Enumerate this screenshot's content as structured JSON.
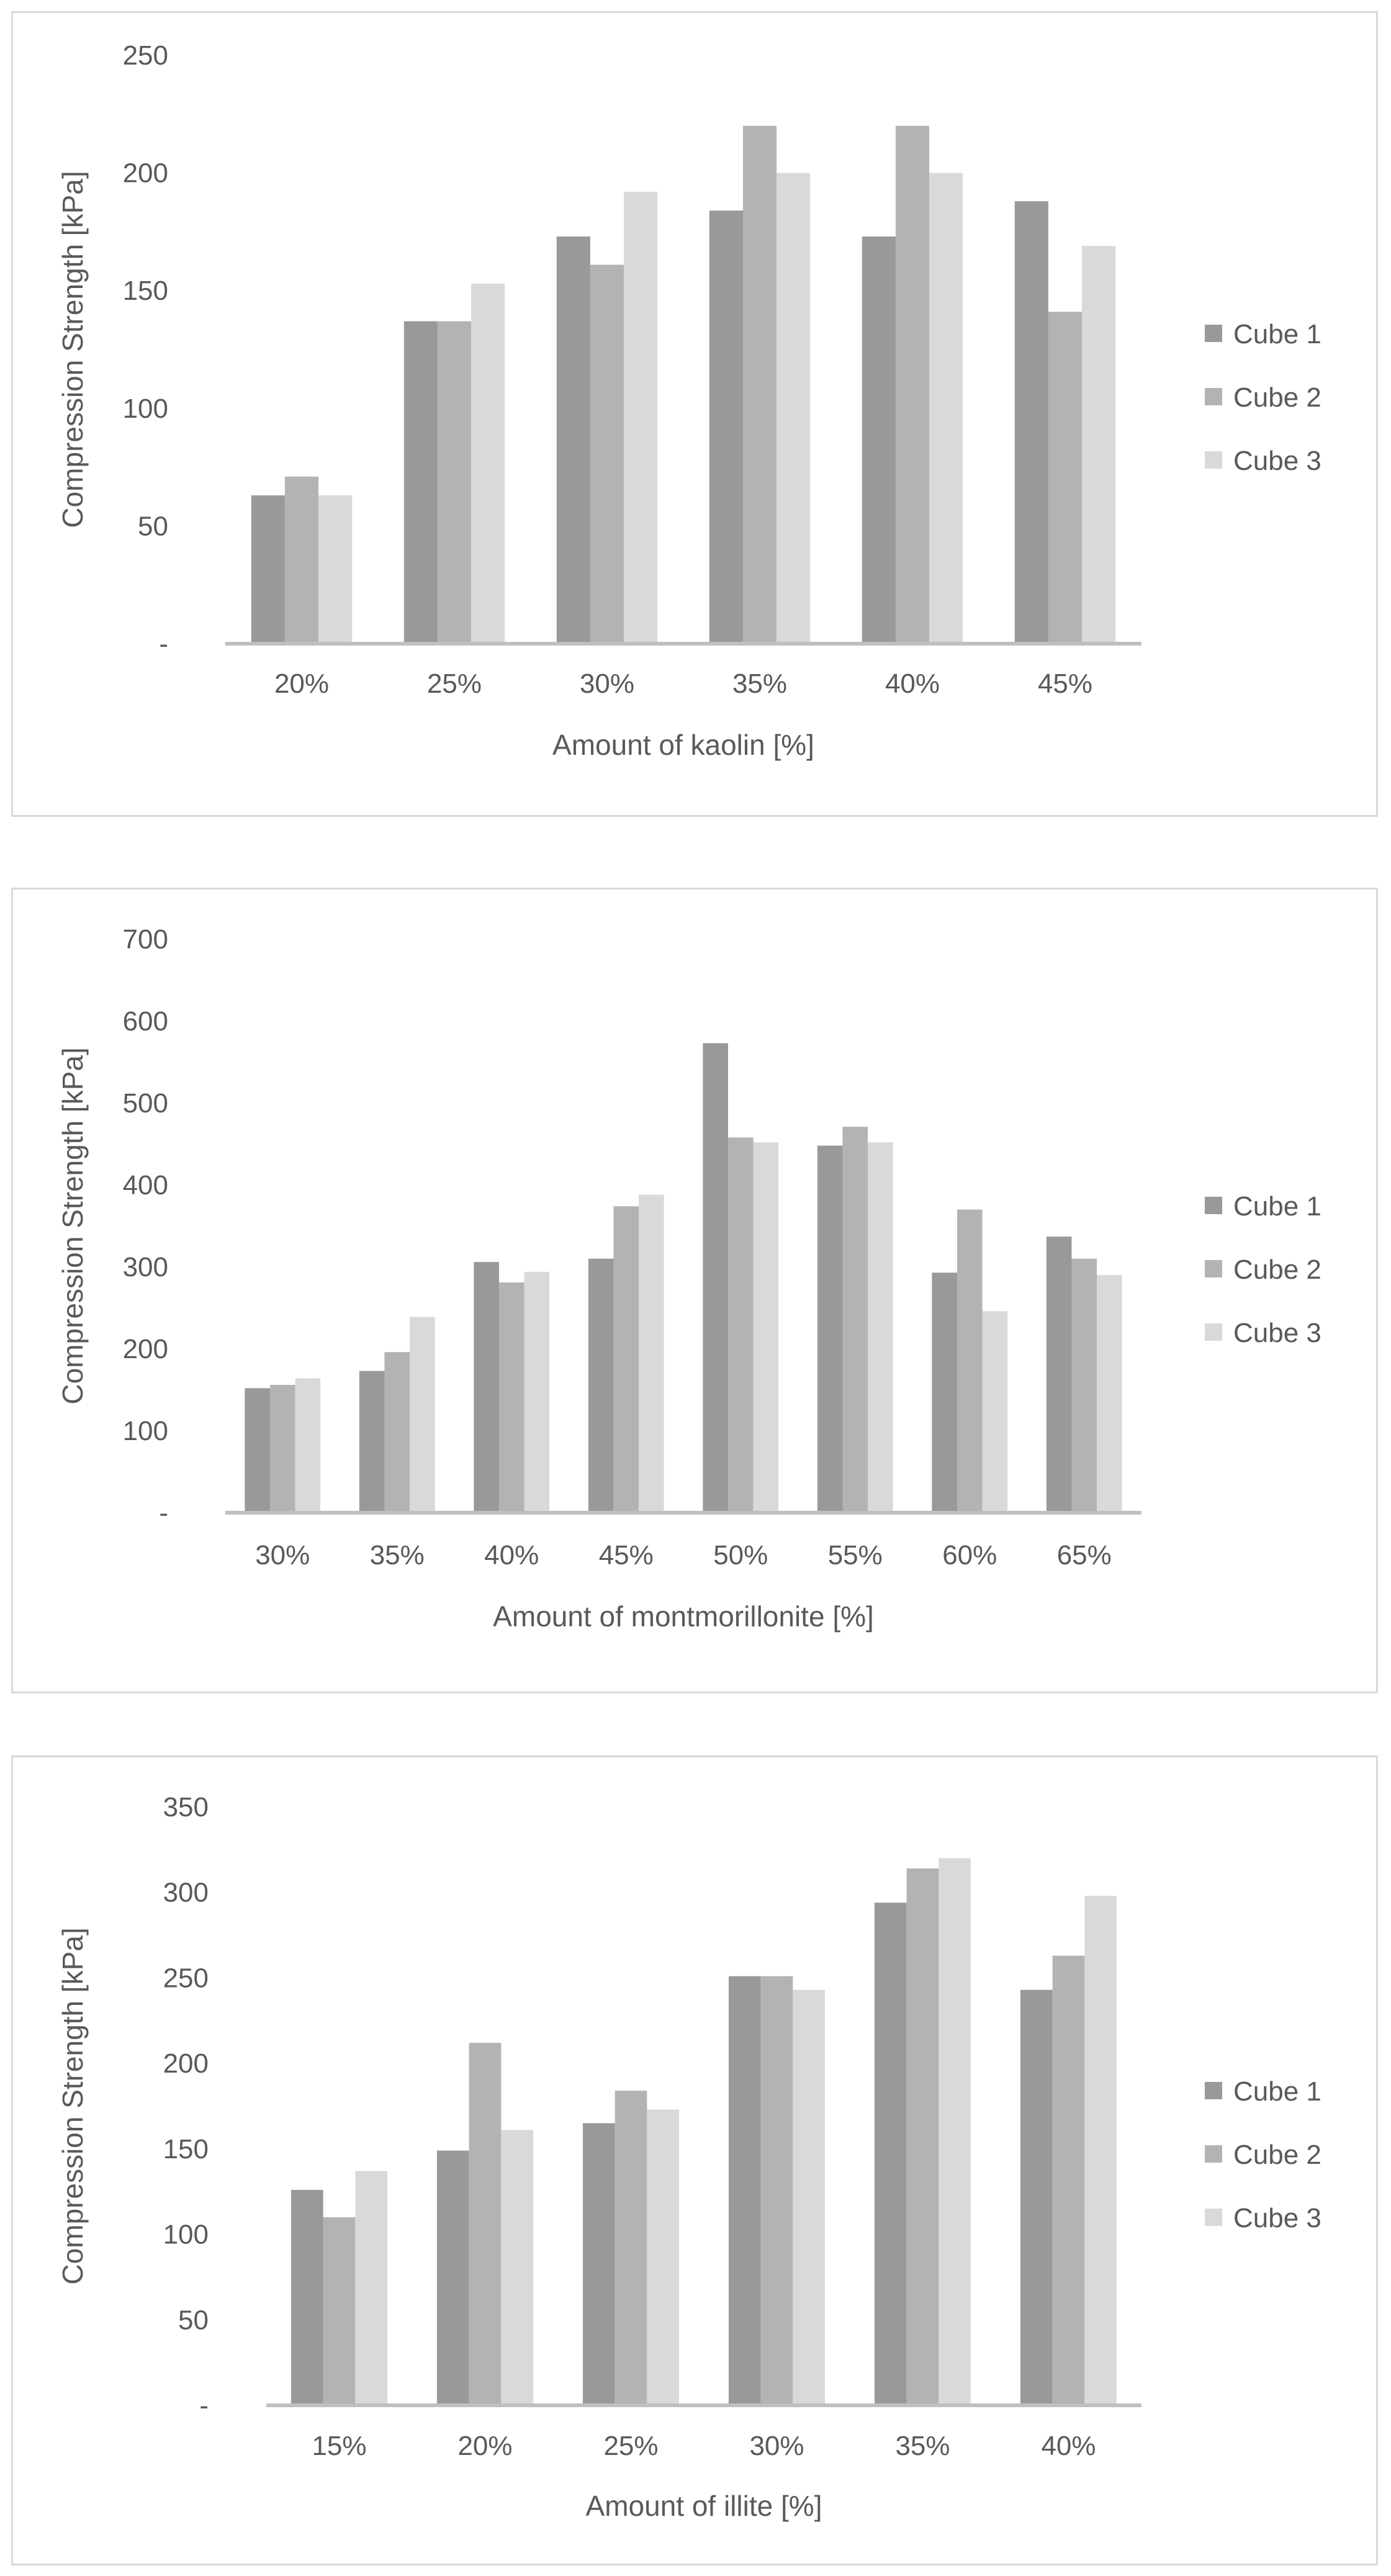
{
  "colors": {
    "cube1": "#999999",
    "cube2": "#b3b3b3",
    "cube3": "#d9d9d9",
    "axis": "#bfbfbf",
    "text": "#595959",
    "border": "#d9d9d9"
  },
  "chart_data": [
    {
      "type": "bar",
      "title": "",
      "xlabel": "Amount of kaolin [%]",
      "ylabel": "Compression Strength [kPa]",
      "ylim": [
        0,
        250
      ],
      "yticks": [
        0,
        50,
        100,
        150,
        200,
        250
      ],
      "ytick_labels": [
        "-",
        "50",
        "100",
        "150",
        "200",
        "250"
      ],
      "categories": [
        "20%",
        "25%",
        "30%",
        "35%",
        "40%",
        "45%"
      ],
      "legend": "right",
      "series": [
        {
          "name": "Cube 1",
          "values": [
            63,
            137,
            173,
            184,
            173,
            188
          ]
        },
        {
          "name": "Cube 2",
          "values": [
            71,
            137,
            161,
            220,
            220,
            141
          ]
        },
        {
          "name": "Cube 3",
          "values": [
            63,
            153,
            192,
            200,
            200,
            169
          ]
        }
      ]
    },
    {
      "type": "bar",
      "title": "",
      "xlabel": "Amount of montmorillonite [%]",
      "ylabel": "Compression Strength [kPa]",
      "ylim": [
        0,
        700
      ],
      "yticks": [
        0,
        100,
        200,
        300,
        400,
        500,
        600,
        700
      ],
      "ytick_labels": [
        "-",
        "100",
        "200",
        "300",
        "400",
        "500",
        "600",
        "700"
      ],
      "categories": [
        "30%",
        "35%",
        "40%",
        "45%",
        "50%",
        "55%",
        "60%",
        "65%"
      ],
      "legend": "right",
      "series": [
        {
          "name": "Cube 1",
          "values": [
            152,
            173,
            306,
            310,
            573,
            448,
            293,
            337
          ]
        },
        {
          "name": "Cube 2",
          "values": [
            156,
            196,
            281,
            374,
            458,
            471,
            370,
            310
          ]
        },
        {
          "name": "Cube 3",
          "values": [
            164,
            239,
            294,
            388,
            452,
            452,
            246,
            290
          ]
        }
      ]
    },
    {
      "type": "bar",
      "title": "",
      "xlabel": "Amount of illite [%]",
      "ylabel": "Compression Strength [kPa]",
      "ylim": [
        0,
        350
      ],
      "yticks": [
        0,
        50,
        100,
        150,
        200,
        250,
        300,
        350
      ],
      "ytick_labels": [
        "-",
        "50",
        "100",
        "150",
        "200",
        "250",
        "300",
        "350"
      ],
      "categories": [
        "15%",
        "20%",
        "25%",
        "30%",
        "35%",
        "40%"
      ],
      "legend": "right",
      "series": [
        {
          "name": "Cube 1",
          "values": [
            126,
            149,
            165,
            251,
            294,
            243
          ]
        },
        {
          "name": "Cube 2",
          "values": [
            110,
            212,
            184,
            251,
            314,
            263
          ]
        },
        {
          "name": "Cube 3",
          "values": [
            137,
            161,
            173,
            243,
            320,
            298
          ]
        }
      ]
    }
  ]
}
